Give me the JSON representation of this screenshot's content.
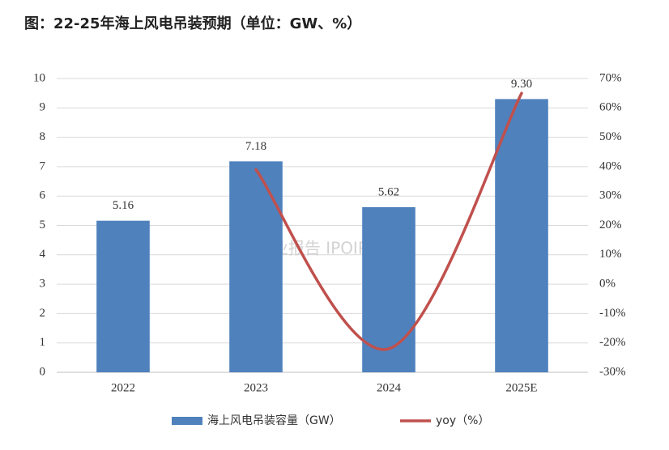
{
  "chart_data": {
    "type": "bar",
    "title": "图：22-25年海上风电吊装预期（单位：GW、%）",
    "categories": [
      "2022",
      "2023",
      "2024",
      "2025E"
    ],
    "series": [
      {
        "name": "海上风电吊装容量（GW）",
        "type": "bar",
        "color": "#4f81bd",
        "values": [
          5.16,
          7.18,
          5.62,
          9.3
        ],
        "value_labels": [
          "5.16",
          "7.18",
          "5.62",
          "9.30"
        ]
      },
      {
        "name": "yoy（%）",
        "type": "line",
        "axis": "y2",
        "color": "#c0504d",
        "values": [
          null,
          39,
          -22,
          65
        ]
      }
    ],
    "ylim": [
      0,
      10
    ],
    "yticks": [
      0,
      1,
      2,
      3,
      4,
      5,
      6,
      7,
      8,
      9,
      10
    ],
    "y2lim": [
      -30,
      70
    ],
    "y2ticks": [
      {
        "value": -30,
        "label": "-30%"
      },
      {
        "value": -20,
        "label": "-20%"
      },
      {
        "value": -10,
        "label": "-10%"
      },
      {
        "value": 0,
        "label": "0%"
      },
      {
        "value": 10,
        "label": "10%"
      },
      {
        "value": 20,
        "label": "20%"
      },
      {
        "value": 30,
        "label": "30%"
      },
      {
        "value": 40,
        "label": "40%"
      },
      {
        "value": 50,
        "label": "50%"
      },
      {
        "value": 60,
        "label": "60%"
      },
      {
        "value": 70,
        "label": "70%"
      }
    ],
    "grid": true,
    "legend": "bottom",
    "watermark": "行业报告 IPOIPO.CN"
  }
}
